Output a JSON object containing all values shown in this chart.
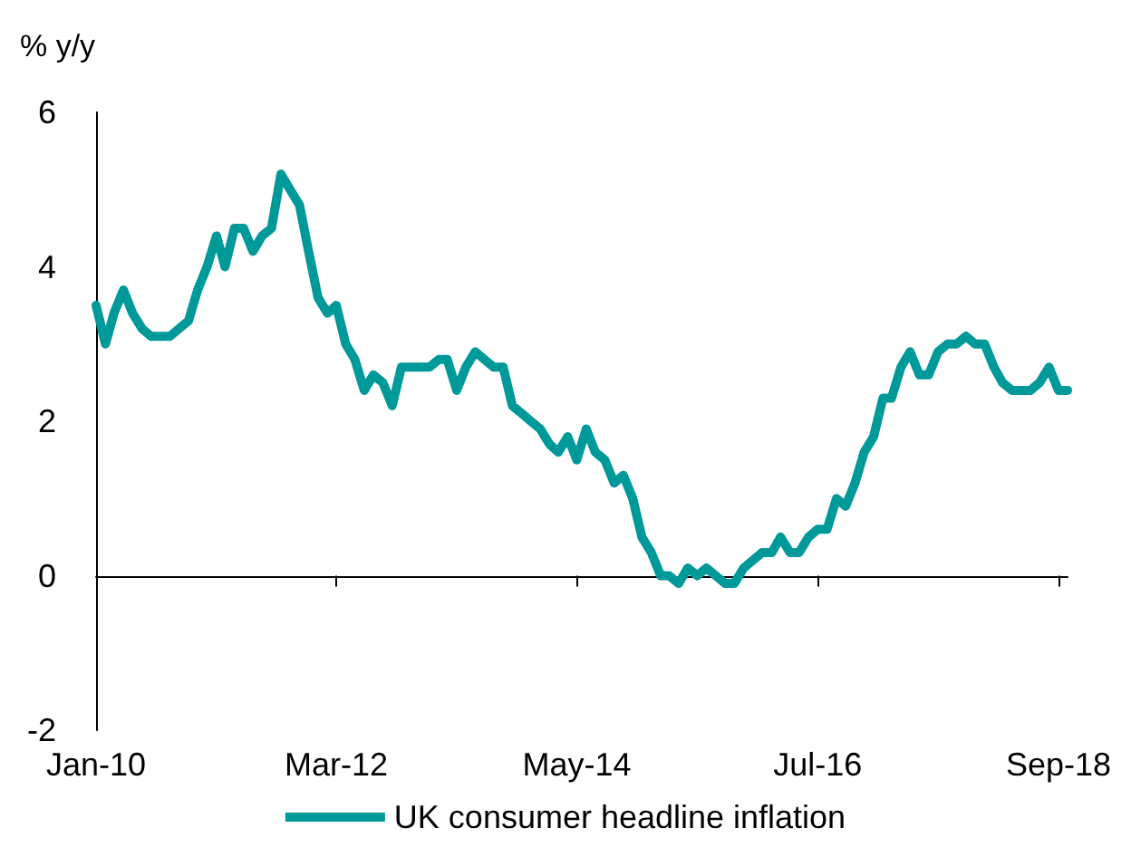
{
  "chart_data": {
    "type": "line",
    "ylabel": "% y/y",
    "x": [
      "2010-01",
      "2010-02",
      "2010-03",
      "2010-04",
      "2010-05",
      "2010-06",
      "2010-07",
      "2010-08",
      "2010-09",
      "2010-10",
      "2010-11",
      "2010-12",
      "2011-01",
      "2011-02",
      "2011-03",
      "2011-04",
      "2011-05",
      "2011-06",
      "2011-07",
      "2011-08",
      "2011-09",
      "2011-10",
      "2011-11",
      "2011-12",
      "2012-01",
      "2012-02",
      "2012-03",
      "2012-04",
      "2012-05",
      "2012-06",
      "2012-07",
      "2012-08",
      "2012-09",
      "2012-10",
      "2012-11",
      "2012-12",
      "2013-01",
      "2013-02",
      "2013-03",
      "2013-04",
      "2013-05",
      "2013-06",
      "2013-07",
      "2013-08",
      "2013-09",
      "2013-10",
      "2013-11",
      "2013-12",
      "2014-01",
      "2014-02",
      "2014-03",
      "2014-04",
      "2014-05",
      "2014-06",
      "2014-07",
      "2014-08",
      "2014-09",
      "2014-10",
      "2014-11",
      "2014-12",
      "2015-01",
      "2015-02",
      "2015-03",
      "2015-04",
      "2015-05",
      "2015-06",
      "2015-07",
      "2015-08",
      "2015-09",
      "2015-10",
      "2015-11",
      "2015-12",
      "2016-01",
      "2016-02",
      "2016-03",
      "2016-04",
      "2016-05",
      "2016-06",
      "2016-07",
      "2016-08",
      "2016-09",
      "2016-10",
      "2016-11",
      "2016-12",
      "2017-01",
      "2017-02",
      "2017-03",
      "2017-04",
      "2017-05",
      "2017-06",
      "2017-07",
      "2017-08",
      "2017-09",
      "2017-10",
      "2017-11",
      "2017-12",
      "2018-01",
      "2018-02",
      "2018-03",
      "2018-04",
      "2018-05",
      "2018-06",
      "2018-07",
      "2018-08",
      "2018-09",
      "2018-10"
    ],
    "series": [
      {
        "name": "UK consumer headline inflation",
        "color": "#009999",
        "values": [
          3.5,
          3.0,
          3.4,
          3.7,
          3.4,
          3.2,
          3.1,
          3.1,
          3.1,
          3.2,
          3.3,
          3.7,
          4.0,
          4.4,
          4.0,
          4.5,
          4.5,
          4.2,
          4.4,
          4.5,
          5.2,
          5.0,
          4.8,
          4.2,
          3.6,
          3.4,
          3.5,
          3.0,
          2.8,
          2.4,
          2.6,
          2.5,
          2.2,
          2.7,
          2.7,
          2.7,
          2.7,
          2.8,
          2.8,
          2.4,
          2.7,
          2.9,
          2.8,
          2.7,
          2.7,
          2.2,
          2.1,
          2.0,
          1.9,
          1.7,
          1.6,
          1.8,
          1.5,
          1.9,
          1.6,
          1.5,
          1.2,
          1.3,
          1.0,
          0.5,
          0.3,
          0.0,
          0.0,
          -0.1,
          0.1,
          0.0,
          0.1,
          0.0,
          -0.1,
          -0.1,
          0.1,
          0.2,
          0.3,
          0.3,
          0.5,
          0.3,
          0.3,
          0.5,
          0.6,
          0.6,
          1.0,
          0.9,
          1.2,
          1.6,
          1.8,
          2.3,
          2.3,
          2.7,
          2.9,
          2.6,
          2.6,
          2.9,
          3.0,
          3.0,
          3.1,
          3.0,
          3.0,
          2.7,
          2.5,
          2.4,
          2.4,
          2.4,
          2.5,
          2.7,
          2.4,
          2.4
        ]
      }
    ],
    "xlim": [
      "2010-01",
      "2018-10"
    ],
    "xticks": [
      {
        "value": "2010-01",
        "label": "Jan-10"
      },
      {
        "value": "2012-03",
        "label": "Mar-12"
      },
      {
        "value": "2014-05",
        "label": "May-14"
      },
      {
        "value": "2016-07",
        "label": "Jul-16"
      },
      {
        "value": "2018-09",
        "label": "Sep-18"
      }
    ],
    "ylim": [
      -2,
      6
    ],
    "yticks": [
      -2,
      0,
      2,
      4,
      6
    ],
    "legend": "bottom",
    "marker": "none",
    "line_style": "solid"
  }
}
